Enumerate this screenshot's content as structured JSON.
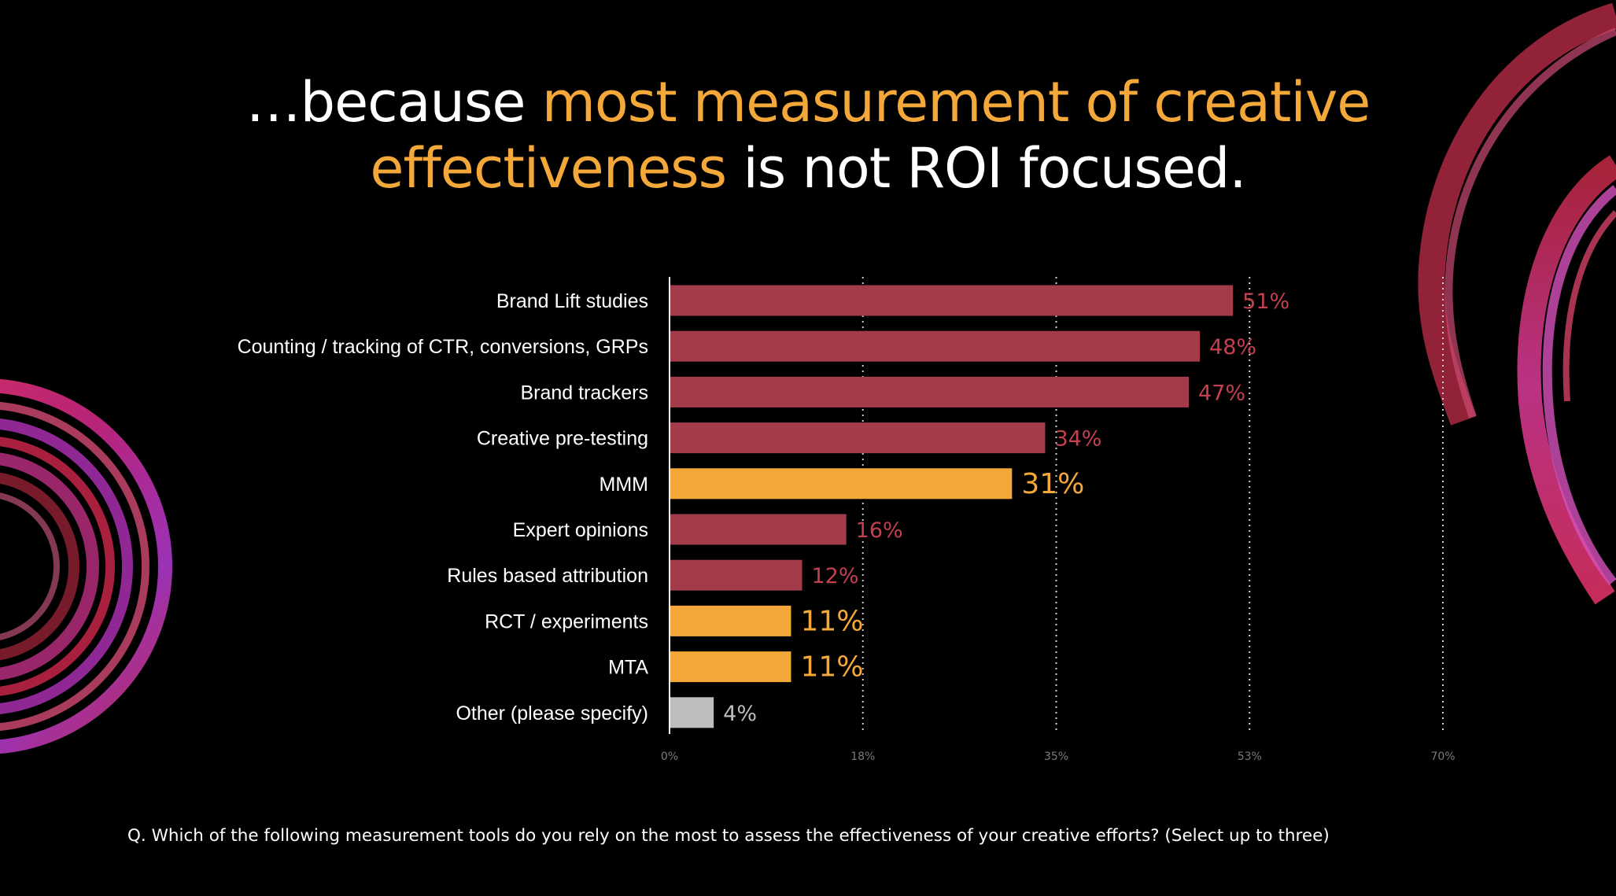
{
  "slide": {
    "title_pre": "…because ",
    "title_hl_1": "most measurement of creative",
    "title_hl_2": "effectiveness",
    "title_post": " is not ROI focused.",
    "footnote": "Q. Which of the following measurement tools do you rely on the most to assess the effectiveness of your creative efforts? (Select up to three)"
  },
  "colors": {
    "accent_orange": "#f4a83a",
    "bar_red": "#a33b4b",
    "bar_grey": "#bdbdbd",
    "label_red": "#c2404f"
  },
  "chart_data": {
    "type": "bar",
    "orientation": "horizontal",
    "categories": [
      "Brand Lift studies",
      "Counting / tracking of CTR, conversions, GRPs",
      "Brand trackers",
      "Creative pre-testing",
      "MMM",
      "Expert opinions",
      "Rules based attribution",
      "RCT / experiments",
      "MTA",
      "Other (please specify)"
    ],
    "values": [
      51,
      48,
      47,
      34,
      31,
      16,
      12,
      11,
      11,
      4
    ],
    "value_labels": [
      "51%",
      "48%",
      "47%",
      "34%",
      "31%",
      "16%",
      "12%",
      "11%",
      "11%",
      "4%"
    ],
    "highlight": [
      "red",
      "red",
      "red",
      "red",
      "orange",
      "red",
      "red",
      "orange",
      "orange",
      "grey"
    ],
    "xlim": [
      0,
      70
    ],
    "x_ticks": [
      0,
      17.5,
      35,
      52.5,
      70
    ],
    "x_tick_labels": [
      "0%",
      "18%",
      "35%",
      "53%",
      "70%"
    ],
    "grid": "vertical dotted",
    "legend": "none",
    "title": "",
    "xlabel": "",
    "ylabel": ""
  }
}
